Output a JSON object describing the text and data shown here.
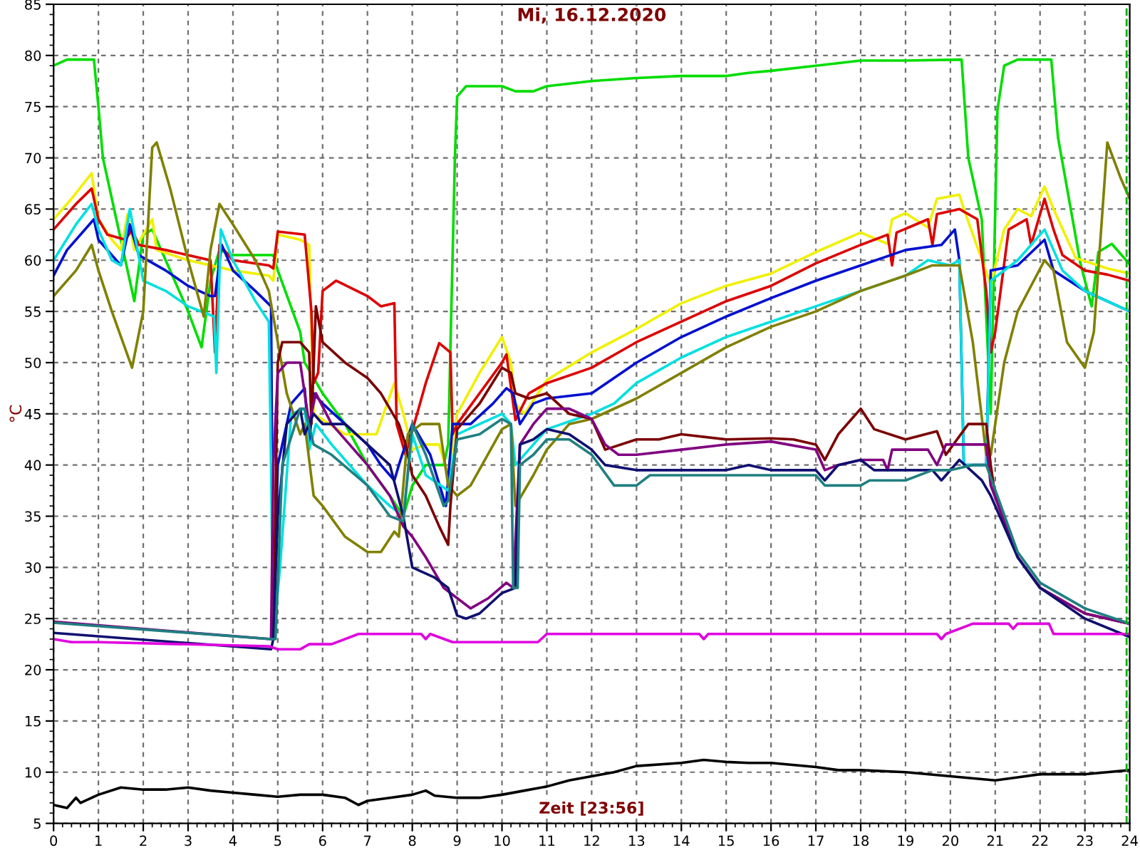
{
  "chart_data": {
    "type": "line",
    "title": "Mi, 16.12.2020",
    "xlabel": "Zeit [23:56]",
    "ylabel": "°C",
    "xlim": [
      0,
      24
    ],
    "xticks": [
      0,
      1,
      2,
      3,
      4,
      5,
      6,
      7,
      8,
      9,
      10,
      11,
      12,
      13,
      14,
      15,
      16,
      17,
      18,
      19,
      20,
      21,
      22,
      23,
      24
    ],
    "ylim": [
      5,
      85
    ],
    "yticks": [
      5,
      10,
      15,
      20,
      25,
      30,
      35,
      40,
      45,
      50,
      55,
      60,
      65,
      70,
      75,
      80,
      85
    ],
    "grid": true,
    "line_style": "solid",
    "marker": "none",
    "ref_lines": [
      {
        "axis": "x",
        "value": 23.93,
        "color": "#00b000",
        "line_style": "dashed"
      }
    ],
    "series": [
      {
        "color": "#00dd00",
        "x": [
          0,
          0.3,
          0.9,
          1.0,
          1.1,
          1.5,
          1.8,
          2.0,
          2.2,
          2.5,
          3.0,
          3.3,
          3.5,
          3.7,
          4.0,
          4.5,
          4.9,
          5.0,
          5.5,
          5.6,
          6.0,
          6.5,
          7.0,
          7.5,
          7.8,
          8.0,
          8.3,
          8.7,
          8.8,
          8.95,
          9.0,
          9.2,
          10.0,
          10.3,
          10.7,
          11.0,
          12.0,
          13.0,
          14.0,
          15.0,
          15.5,
          16.0,
          17.0,
          18.0,
          19.0,
          20.25,
          20.4,
          20.7,
          20.9,
          21.05,
          21.2,
          21.5,
          22.25,
          22.4,
          22.9,
          23.15,
          23.3,
          23.6,
          24
        ],
        "values": [
          79,
          79.6,
          79.6,
          75,
          70,
          62,
          56,
          62.5,
          63,
          60,
          55,
          51.5,
          58,
          61,
          60.5,
          60.5,
          60.5,
          59,
          53,
          50,
          47,
          44,
          40,
          37,
          35,
          38,
          40,
          40,
          42,
          70,
          76,
          77,
          77,
          76.5,
          76.5,
          77,
          77.5,
          77.8,
          78,
          78,
          78.3,
          78.5,
          79,
          79.5,
          79.5,
          79.6,
          70,
          64,
          45,
          74.7,
          79,
          79.6,
          79.6,
          72,
          59.7,
          55.5,
          60.8,
          61.6,
          59.6
        ]
      },
      {
        "color": "#f0f000",
        "x": [
          0,
          0.4,
          0.85,
          1.0,
          1.3,
          1.5,
          1.65,
          1.8,
          2.2,
          2.3,
          3,
          4.0,
          4.8,
          4.9,
          5.0,
          5.5,
          5.7,
          5.8,
          6.5,
          7.2,
          7.6,
          7.8,
          8.0,
          8.3,
          8.6,
          8.8,
          9.0,
          9.5,
          10.0,
          10.2,
          10.3,
          10.5,
          11,
          12,
          13,
          14,
          15,
          16,
          17,
          18,
          18.6,
          18.7,
          19,
          19.5,
          19.7,
          20.2,
          20.3,
          20.9,
          21.2,
          21.5,
          21.8,
          22.1,
          22.3,
          22.8,
          23.5,
          24
        ],
        "values": [
          64,
          66,
          68.5,
          64,
          62,
          61,
          64.5,
          61,
          64,
          61,
          60,
          59,
          58.5,
          58,
          62.5,
          62,
          61.5,
          45,
          43,
          43,
          48,
          45,
          41.5,
          42,
          42,
          39,
          45,
          49,
          52.5,
          50,
          46,
          45,
          48.3,
          51,
          53.3,
          55.8,
          57.5,
          58.7,
          60.8,
          62.7,
          61.6,
          64,
          64.6,
          63.2,
          66,
          66.4,
          65,
          57.6,
          63,
          65,
          64.3,
          67.2,
          65,
          60.2,
          59.2,
          58.7
        ]
      },
      {
        "color": "#dd0000",
        "x": [
          0,
          0.5,
          0.85,
          1.0,
          1.2,
          1.6,
          1.75,
          1.9,
          2.5,
          3.5,
          3.6,
          3.7,
          4.0,
          4.8,
          4.9,
          5.0,
          5.6,
          5.75,
          5.8,
          5.9,
          6.0,
          6.3,
          7.0,
          7.3,
          7.6,
          7.65,
          7.85,
          8.3,
          8.6,
          8.85,
          8.9,
          9.0,
          9.5,
          10.0,
          10.1,
          10.3,
          10.6,
          11,
          12,
          13,
          14,
          15,
          16,
          17,
          18,
          18.6,
          18.7,
          18.8,
          19.5,
          19.6,
          19.7,
          20.2,
          20.6,
          20.8,
          20.9,
          21.0,
          21.3,
          21.7,
          21.8,
          22.1,
          22.3,
          22.5,
          23,
          23.5,
          24
        ],
        "values": [
          63,
          65.5,
          67,
          64,
          62.5,
          62,
          63,
          61.5,
          61,
          60,
          51,
          61.5,
          60,
          59.5,
          59.2,
          62.8,
          62.5,
          55,
          48,
          49,
          57,
          58,
          56.5,
          55.5,
          55.8,
          44,
          41,
          48,
          51.9,
          51,
          43,
          44,
          47,
          50,
          50.8,
          44.4,
          47,
          48,
          49.5,
          52,
          54,
          56,
          57.5,
          59.7,
          61.5,
          62.5,
          59.5,
          62.7,
          64,
          61.5,
          64.5,
          65,
          64,
          57,
          51,
          53,
          63,
          64,
          61.5,
          66,
          63,
          60.5,
          59,
          58.6,
          58
        ]
      },
      {
        "color": "#0010d0",
        "x": [
          0,
          0.3,
          0.9,
          1.0,
          1.2,
          1.5,
          1.7,
          1.9,
          2.5,
          3,
          3.5,
          3.6,
          3.75,
          4.0,
          4.5,
          4.85,
          4.9,
          5.0,
          5.3,
          5.6,
          5.7,
          5.8,
          6.0,
          6.5,
          7.0,
          7.3,
          7.6,
          7.7,
          7.85,
          8.0,
          8.4,
          8.75,
          8.9,
          9.3,
          9.8,
          10.1,
          10.25,
          10.4,
          10.7,
          11,
          12,
          13,
          14,
          15,
          16,
          17,
          18,
          19,
          19.8,
          20.1,
          20.2,
          20.3,
          20.8,
          20.9,
          21.5,
          22.1,
          22.3,
          23,
          24
        ],
        "values": [
          58.5,
          61,
          64,
          62,
          61,
          59.5,
          63.5,
          60.5,
          59,
          57.5,
          56.5,
          56.5,
          61.5,
          59,
          57,
          55.5,
          23,
          40,
          46,
          47.5,
          42,
          47,
          46,
          44,
          42,
          40,
          38.5,
          40,
          42,
          44,
          41,
          36,
          44,
          44,
          46,
          47.5,
          47,
          44,
          46,
          46.5,
          47,
          50,
          52.5,
          54.5,
          56.3,
          58,
          59.5,
          61,
          61.5,
          63,
          60,
          40,
          40,
          59,
          59.5,
          62,
          59,
          57,
          55
        ]
      },
      {
        "color": "#00e0e0",
        "x": [
          0,
          0.5,
          0.85,
          1.0,
          1.3,
          1.5,
          1.7,
          2.0,
          2.5,
          3,
          3.58,
          3.63,
          3.73,
          4.0,
          4.5,
          4.8,
          4.85,
          4.9,
          5.05,
          5.3,
          5.6,
          5.7,
          5.85,
          6.2,
          7.0,
          7.5,
          7.8,
          8.0,
          8.3,
          8.8,
          9.0,
          9.5,
          10.0,
          10.2,
          10.3,
          10.7,
          11,
          12,
          12.5,
          13,
          14,
          15,
          16,
          17,
          18,
          19,
          19.5,
          20,
          20.2,
          20.3,
          20.8,
          20.9,
          21.5,
          22.1,
          22.5,
          23,
          24
        ],
        "values": [
          60,
          63.5,
          65.5,
          63,
          60,
          59.5,
          65,
          58,
          57,
          55.5,
          54.5,
          49,
          63,
          60,
          56,
          54,
          40,
          23,
          30,
          45,
          45.5,
          41.5,
          44,
          42,
          38,
          36,
          35,
          43,
          39,
          37.5,
          43,
          44,
          45,
          44,
          40,
          42,
          43.5,
          45,
          46,
          48,
          50.5,
          52.5,
          54,
          55.5,
          57,
          58.5,
          60,
          59.5,
          60,
          40,
          40,
          58,
          60,
          63,
          59,
          57,
          55
        ]
      },
      {
        "color": "#808000",
        "x": [
          0,
          0.5,
          0.85,
          1.0,
          1.3,
          1.75,
          2.0,
          2.2,
          2.3,
          2.6,
          3.0,
          3.35,
          3.5,
          3.7,
          4.0,
          4.5,
          4.8,
          5.2,
          5.5,
          5.6,
          5.8,
          6.0,
          6.5,
          7.0,
          7.3,
          7.6,
          7.7,
          7.9,
          8.2,
          8.6,
          8.8,
          9.0,
          9.3,
          10.0,
          10.2,
          10.3,
          10.7,
          11,
          11.5,
          12,
          13,
          14,
          15,
          16,
          17,
          18,
          19,
          19.6,
          20.2,
          20.5,
          20.8,
          20.9,
          21.2,
          21.5,
          22.1,
          22.3,
          22.6,
          23.0,
          23.2,
          23.5,
          23.8,
          24
        ],
        "values": [
          56.5,
          59,
          61.5,
          59,
          55,
          49.5,
          55,
          71,
          71.5,
          67,
          60,
          54.5,
          61,
          65.5,
          63.5,
          60,
          57,
          47,
          43,
          44,
          37,
          36,
          33,
          31.5,
          31.5,
          33.5,
          33,
          43,
          44,
          44,
          38,
          37,
          38,
          43.5,
          44,
          36,
          39,
          41.5,
          44,
          44.5,
          46.5,
          49,
          51.5,
          53.5,
          55,
          57,
          58.5,
          59.5,
          59.5,
          52,
          41,
          41,
          50,
          55,
          60,
          59,
          52,
          49.5,
          53,
          71.5,
          68,
          66
        ]
      },
      {
        "color": "#7b0000",
        "x": [
          4.9,
          5.0,
          5.1,
          5.5,
          5.7,
          5.75,
          5.85,
          6.0,
          6.5,
          7.0,
          7.3,
          7.7,
          7.85,
          8.0,
          8.3,
          8.6,
          8.8,
          8.85,
          9.0,
          9.5,
          10.0,
          10.2,
          10.3,
          10.6,
          11,
          11.5,
          12,
          12.3,
          13,
          13.5,
          14,
          15,
          16,
          16.5,
          17,
          17.2,
          17.5,
          18,
          18.3,
          19,
          19.7,
          19.9,
          20.4,
          20.8,
          20.9,
          21,
          21.5,
          22,
          23,
          24
        ],
        "values": [
          23,
          50,
          52,
          52,
          51,
          44,
          55.5,
          52,
          50,
          48.5,
          47,
          44,
          42,
          39,
          37,
          34,
          32.2,
          36,
          43.5,
          46,
          49.5,
          49,
          47,
          46.5,
          47,
          45,
          44.5,
          41.5,
          42.5,
          42.5,
          43,
          42.5,
          42.6,
          42.5,
          42,
          40.5,
          43,
          45.5,
          43.5,
          42.5,
          43.3,
          41,
          44,
          44,
          40,
          37,
          31,
          28,
          25.5,
          24.5
        ]
      },
      {
        "color": "#800080",
        "x": [
          0,
          4.85,
          4.9,
          5.0,
          5.2,
          5.5,
          5.7,
          5.85,
          6.2,
          7.0,
          7.5,
          7.8,
          8.0,
          8.3,
          8.7,
          9.0,
          9.3,
          9.7,
          10.1,
          10.25,
          10.4,
          10.7,
          11,
          11.5,
          12,
          12.3,
          12.6,
          13,
          14,
          15,
          16,
          17,
          17.2,
          17.5,
          18,
          18.5,
          18.6,
          18.7,
          19.5,
          19.7,
          19.9,
          20.2,
          20.8,
          20.9,
          21.5,
          22,
          23,
          24
        ],
        "values": [
          24.7,
          23,
          40,
          49,
          50,
          50,
          44,
          47,
          44,
          40,
          37,
          34,
          33,
          31,
          28,
          27,
          26,
          27,
          28.5,
          28,
          42,
          44,
          45.5,
          45.5,
          44.5,
          42,
          41,
          41,
          41.5,
          42,
          42.3,
          41.5,
          39.5,
          40,
          40.5,
          40.5,
          39.5,
          41.5,
          41.5,
          40,
          42,
          42,
          42,
          38,
          31,
          28,
          25.5,
          24.5
        ]
      },
      {
        "color": "#101070",
        "x": [
          0,
          4.85,
          4.9,
          5.0,
          5.2,
          5.5,
          5.6,
          5.8,
          6.0,
          6.5,
          7.0,
          7.5,
          7.8,
          8.0,
          8.5,
          8.8,
          9.0,
          9.2,
          9.5,
          10.0,
          10.3,
          10.4,
          10.7,
          11,
          11.5,
          12,
          12.3,
          13,
          14,
          15,
          15.5,
          16,
          17,
          17.2,
          17.5,
          18,
          18.3,
          19,
          19.6,
          19.8,
          20.2,
          20.7,
          20.9,
          21.5,
          22,
          23,
          24
        ],
        "values": [
          23.6,
          22,
          23,
          35,
          44,
          45.5,
          43,
          45,
          44,
          44,
          42,
          40,
          35,
          30,
          29,
          28,
          25.3,
          25,
          25.5,
          27.5,
          28,
          42,
          42.5,
          43.5,
          43,
          41.5,
          40,
          39.5,
          39.5,
          39.5,
          40,
          39.5,
          39.5,
          38.5,
          40,
          40.5,
          39.5,
          39.5,
          39.5,
          38.5,
          40.5,
          38.5,
          37,
          31,
          28,
          25,
          23.2
        ]
      },
      {
        "color": "#207f80",
        "x": [
          0,
          4.85,
          4.95,
          5.1,
          5.5,
          5.6,
          5.8,
          6.2,
          7.0,
          7.5,
          7.8,
          8.0,
          8.3,
          8.7,
          8.8,
          9.0,
          9.5,
          10.0,
          10.2,
          10.25,
          10.35,
          10.4,
          10.7,
          11,
          11.5,
          12,
          12.5,
          13,
          13.3,
          14,
          15,
          16,
          17,
          17.2,
          18,
          18.2,
          19,
          19.6,
          20,
          20.5,
          20.8,
          21.5,
          22,
          23,
          24
        ],
        "values": [
          24.6,
          23,
          23,
          40,
          45.5,
          45.5,
          42,
          41,
          38,
          35,
          34.5,
          44,
          41,
          36,
          36.5,
          42.5,
          43,
          44.5,
          44,
          28,
          28,
          40,
          41,
          42.5,
          42.5,
          41,
          38,
          38,
          39,
          39,
          39,
          39,
          39,
          38,
          38,
          38.5,
          38.5,
          39.5,
          39.5,
          40,
          40,
          31.5,
          28.5,
          26,
          24.5
        ]
      },
      {
        "color": "#e000e0",
        "x": [
          0,
          0.4,
          1,
          4.8,
          5.0,
          5.5,
          5.7,
          6.2,
          6.8,
          8.2,
          8.3,
          8.4,
          8.9,
          10.8,
          11.0,
          14.4,
          14.5,
          14.6,
          19.7,
          19.8,
          19.9,
          20.5,
          21.3,
          21.4,
          21.5,
          22.2,
          22.3,
          24
        ],
        "values": [
          23,
          22.7,
          22.7,
          22.3,
          22,
          22,
          22.5,
          22.5,
          23.5,
          23.5,
          23,
          23.5,
          22.7,
          22.7,
          23.5,
          23.5,
          23,
          23.5,
          23.5,
          23,
          23.5,
          24.5,
          24.5,
          24,
          24.5,
          24.5,
          23.5,
          23.5
        ]
      },
      {
        "color": "#000000",
        "x": [
          0,
          0.3,
          0.5,
          0.6,
          1,
          1.5,
          2,
          2.5,
          3,
          3.5,
          4,
          4.5,
          5,
          5.5,
          6,
          6.5,
          6.8,
          7,
          7.5,
          8,
          8.3,
          8.5,
          9,
          9.5,
          10,
          10.5,
          11,
          11.5,
          12,
          12.5,
          13,
          14,
          14.5,
          15,
          15.5,
          16,
          17,
          17.5,
          18,
          19,
          20,
          21,
          21.5,
          22,
          23,
          23.5,
          24
        ],
        "values": [
          6.8,
          6.5,
          7.5,
          7,
          7.8,
          8.5,
          8.3,
          8.3,
          8.5,
          8.2,
          8,
          7.8,
          7.6,
          7.8,
          7.8,
          7.5,
          6.8,
          7.2,
          7.5,
          7.8,
          8.2,
          7.7,
          7.5,
          7.5,
          7.8,
          8.2,
          8.6,
          9.2,
          9.6,
          10,
          10.6,
          10.9,
          11.2,
          11,
          10.9,
          10.9,
          10.5,
          10.2,
          10.2,
          10,
          9.6,
          9.2,
          9.5,
          9.8,
          9.8,
          10,
          10.2
        ]
      }
    ]
  }
}
